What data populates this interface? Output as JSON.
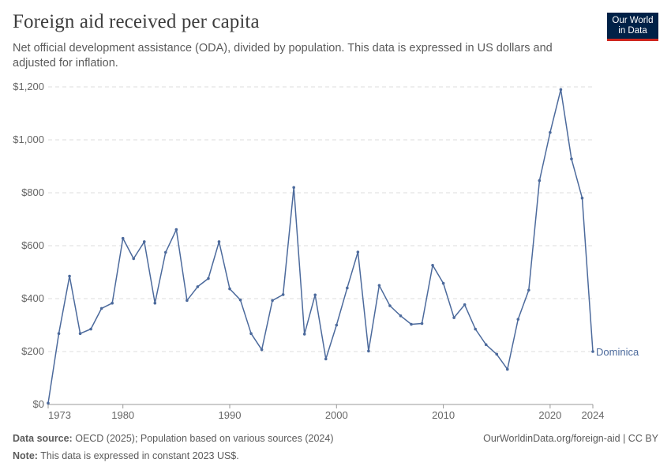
{
  "header": {
    "title": "Foreign aid received per capita",
    "subtitle": "Net official development assistance (ODA), divided by population. This data is expressed in US dollars and adjusted for inflation.",
    "logo_line1": "Our World",
    "logo_line2": "in Data"
  },
  "footer": {
    "source_label": "Data source:",
    "source_text": "OECD (2025); Population based on various sources (2024)",
    "link_text": "OurWorldinData.org/foreign-aid | CC BY",
    "note_label": "Note:",
    "note_text": "This data is expressed in constant 2023 US$."
  },
  "colors": {
    "series": "#4c6a9c",
    "grid": "#dddddd",
    "axis_text": "#666666",
    "logo_bg": "#002147",
    "logo_accent": "#ce261e"
  },
  "chart_data": {
    "type": "line",
    "title": "Foreign aid received per capita",
    "xlabel": "",
    "ylabel": "",
    "xlim": [
      1973,
      2024
    ],
    "ylim": [
      0,
      1200
    ],
    "x_ticks": [
      1973,
      1980,
      1990,
      2000,
      2010,
      2020,
      2024
    ],
    "y_ticks": [
      0,
      200,
      400,
      600,
      800,
      1000,
      1200
    ],
    "y_tick_labels": [
      "$0",
      "$200",
      "$400",
      "$600",
      "$800",
      "$1,000",
      "$1,200"
    ],
    "grid": "horizontal dashed",
    "series": [
      {
        "name": "Dominica",
        "x": [
          1973,
          1974,
          1975,
          1976,
          1977,
          1978,
          1979,
          1980,
          1981,
          1982,
          1983,
          1984,
          1985,
          1986,
          1987,
          1988,
          1989,
          1990,
          1991,
          1992,
          1993,
          1994,
          1995,
          1996,
          1997,
          1998,
          1999,
          2000,
          2001,
          2002,
          2003,
          2004,
          2005,
          2006,
          2007,
          2008,
          2009,
          2010,
          2011,
          2012,
          2013,
          2014,
          2015,
          2016,
          2017,
          2018,
          2019,
          2020,
          2021,
          2022,
          2023,
          2024
        ],
        "values": [
          5,
          268,
          485,
          268,
          285,
          363,
          383,
          628,
          551,
          615,
          383,
          575,
          661,
          393,
          445,
          476,
          615,
          437,
          395,
          268,
          207,
          393,
          415,
          820,
          266,
          414,
          172,
          300,
          440,
          576,
          202,
          450,
          373,
          335,
          303,
          306,
          526,
          458,
          328,
          377,
          285,
          226,
          190,
          133,
          322,
          432,
          846,
          1028,
          1190,
          928,
          780,
          200
        ]
      }
    ]
  }
}
